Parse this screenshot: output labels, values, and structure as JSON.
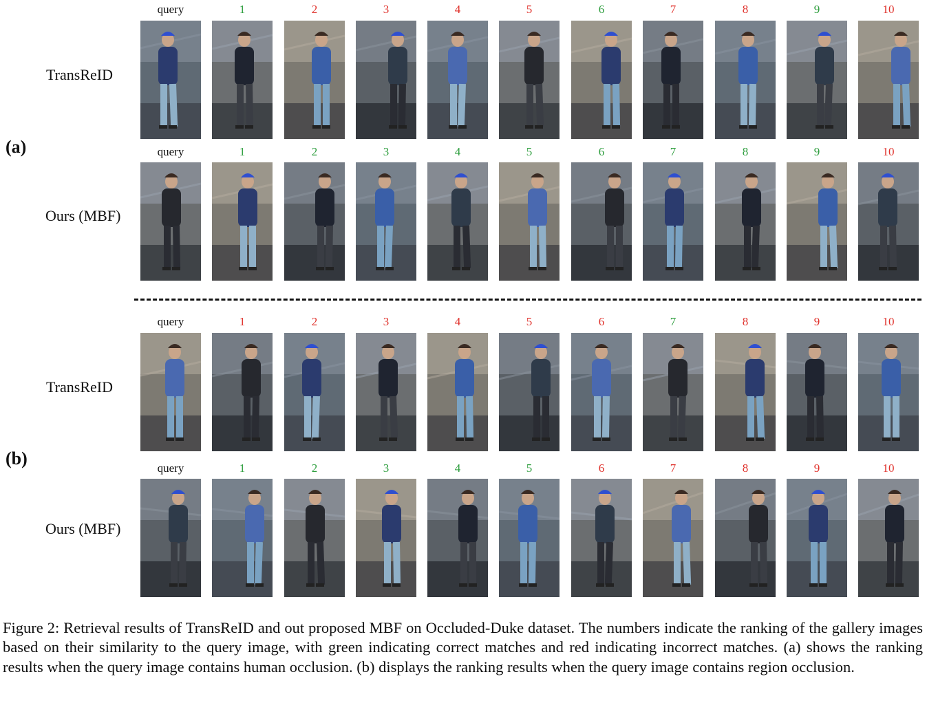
{
  "figure": {
    "caption": "Figure 2: Retrieval results of TransReID and out proposed MBF on Occluded-Duke dataset. The numbers indicate the ranking of the gallery images based on their similarity to the query image, with green indicating correct matches and red indicating incorrect matches. (a) shows the ranking results when the query image contains human occlusion. (b) displays the ranking results when the query image contains region occlusion.",
    "colors": {
      "correct": "#2e9e3e",
      "incorrect": "#e0312b"
    },
    "panels": [
      {
        "label": "(a)",
        "rows": [
          {
            "method": "TransReID",
            "query_label": "query",
            "ranks": [
              "1",
              "2",
              "3",
              "4",
              "5",
              "6",
              "7",
              "8",
              "9",
              "10"
            ],
            "status": [
              "correct",
              "incorrect",
              "incorrect",
              "incorrect",
              "incorrect",
              "correct",
              "incorrect",
              "incorrect",
              "correct",
              "incorrect"
            ]
          },
          {
            "method": "Ours (MBF)",
            "query_label": "query",
            "ranks": [
              "1",
              "2",
              "3",
              "4",
              "5",
              "6",
              "7",
              "8",
              "9",
              "10"
            ],
            "status": [
              "correct",
              "correct",
              "correct",
              "correct",
              "correct",
              "correct",
              "correct",
              "correct",
              "correct",
              "incorrect"
            ]
          }
        ]
      },
      {
        "label": "(b)",
        "rows": [
          {
            "method": "TransReID",
            "query_label": "query",
            "ranks": [
              "1",
              "2",
              "3",
              "4",
              "5",
              "6",
              "7",
              "8",
              "9",
              "10"
            ],
            "status": [
              "incorrect",
              "incorrect",
              "incorrect",
              "incorrect",
              "incorrect",
              "incorrect",
              "correct",
              "incorrect",
              "incorrect",
              "incorrect"
            ]
          },
          {
            "method": "Ours (MBF)",
            "query_label": "query",
            "ranks": [
              "1",
              "2",
              "3",
              "4",
              "5",
              "6",
              "7",
              "8",
              "9",
              "10"
            ],
            "status": [
              "correct",
              "correct",
              "correct",
              "correct",
              "correct",
              "incorrect",
              "incorrect",
              "incorrect",
              "incorrect",
              "incorrect"
            ]
          }
        ]
      }
    ]
  }
}
